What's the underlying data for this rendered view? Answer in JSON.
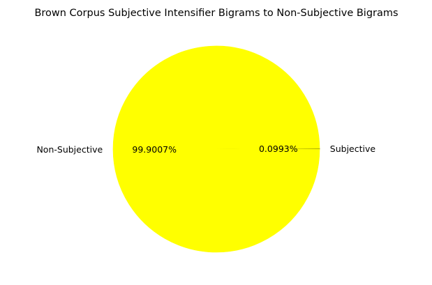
{
  "chart_data": {
    "type": "pie",
    "title": "Brown Corpus Subjective Intensifier Bigrams to Non-Subjective Bigrams",
    "slices": [
      {
        "label": "Subjective",
        "value": 0.0993,
        "pct_label": "0.0993%",
        "color": "#000000"
      },
      {
        "label": "Non-Subjective",
        "value": 99.9007,
        "pct_label": "99.9007%",
        "color": "#ffff00"
      }
    ],
    "start_angle_deg": 0,
    "direction": "counterclockwise",
    "legend": "none"
  }
}
